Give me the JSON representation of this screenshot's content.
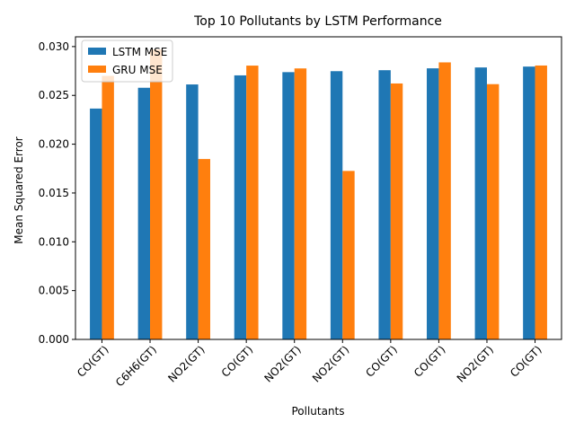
{
  "chart_data": {
    "type": "bar",
    "title": "Top 10 Pollutants by LSTM Performance",
    "xlabel": "Pollutants",
    "ylabel": "Mean Squared Error",
    "categories": [
      "CO(GT)",
      "C6H6(GT)",
      "NO2(GT)",
      "CO(GT)",
      "NO2(GT)",
      "NO2(GT)",
      "CO(GT)",
      "CO(GT)",
      "NO2(GT)",
      "CO(GT)"
    ],
    "series": [
      {
        "name": "LSTM MSE",
        "color": "#1f77b4",
        "values": [
          0.02365,
          0.02578,
          0.02612,
          0.02705,
          0.02738,
          0.02748,
          0.02758,
          0.02777,
          0.02786,
          0.02795
        ]
      },
      {
        "name": "GRU MSE",
        "color": "#ff7f0e",
        "values": [
          0.027,
          0.0297,
          0.01848,
          0.02805,
          0.02776,
          0.01726,
          0.02622,
          0.02838,
          0.02615,
          0.02806
        ]
      }
    ],
    "ylim": [
      0,
      0.031
    ],
    "yticks": [
      0.0,
      0.005,
      0.01,
      0.015,
      0.02,
      0.025,
      0.03
    ],
    "ytick_labels": [
      "0.000",
      "0.005",
      "0.010",
      "0.015",
      "0.020",
      "0.025",
      "0.030"
    ],
    "legend_position": "top-left",
    "grid": false
  }
}
